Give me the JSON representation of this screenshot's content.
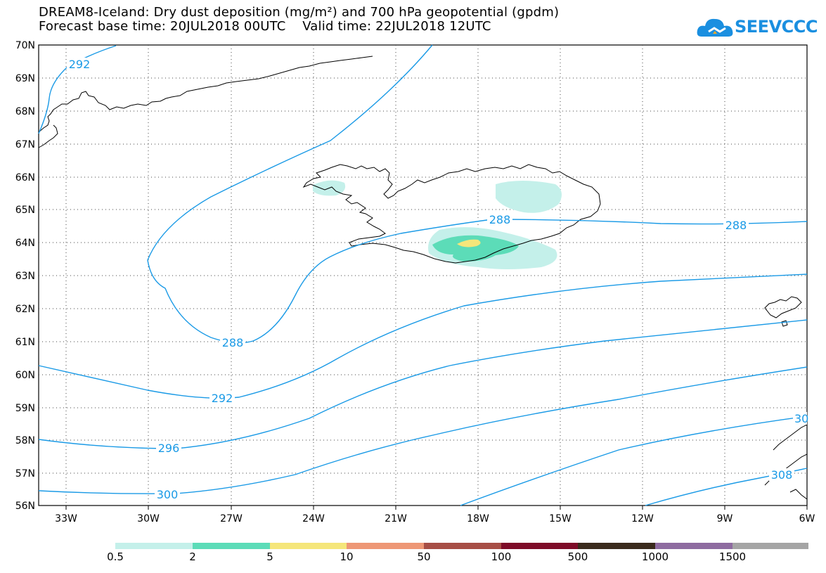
{
  "title": {
    "line1": "DREAM8-Iceland: Dry dust deposition (mg/m²) and 700 hPa geopotential (gpdm)",
    "line2": "Forecast base time: 20JUL2018 00UTC    Valid time: 22JUL2018 12UTC"
  },
  "logo": {
    "text": "SEEVCCC",
    "icon": "cloud-icon",
    "color": "#1a8fe0"
  },
  "map": {
    "lat_labels": [
      "70N",
      "69N",
      "68N",
      "67N",
      "66N",
      "65N",
      "64N",
      "63N",
      "62N",
      "61N",
      "60N",
      "59N",
      "58N",
      "57N",
      "56N"
    ],
    "lon_labels": [
      "33W",
      "30W",
      "27W",
      "24W",
      "21W",
      "18W",
      "15W",
      "12W",
      "9W",
      "6W"
    ],
    "lat_range": [
      56,
      70
    ],
    "lon_range": [
      -34.5,
      -6
    ],
    "grid": "dotted",
    "contour_color": "#1a9ae6",
    "contour_labels": [
      {
        "text": "292"
      },
      {
        "text": "288"
      },
      {
        "text": "288"
      },
      {
        "text": "288"
      },
      {
        "text": "292"
      },
      {
        "text": "296"
      },
      {
        "text": "300"
      },
      {
        "text": "30"
      },
      {
        "text": "308"
      }
    ]
  },
  "legend": {
    "labels": [
      "0.5",
      "2",
      "5",
      "10",
      "50",
      "100",
      "500",
      "1000",
      "1500"
    ],
    "colors": [
      "#c4f0ea",
      "#5cdcb8",
      "#f5e67a",
      "#ee9775",
      "#a74e45",
      "#7e0b28",
      "#3a2a1c",
      "#8e6ba0",
      "#a5a5a5"
    ]
  }
}
